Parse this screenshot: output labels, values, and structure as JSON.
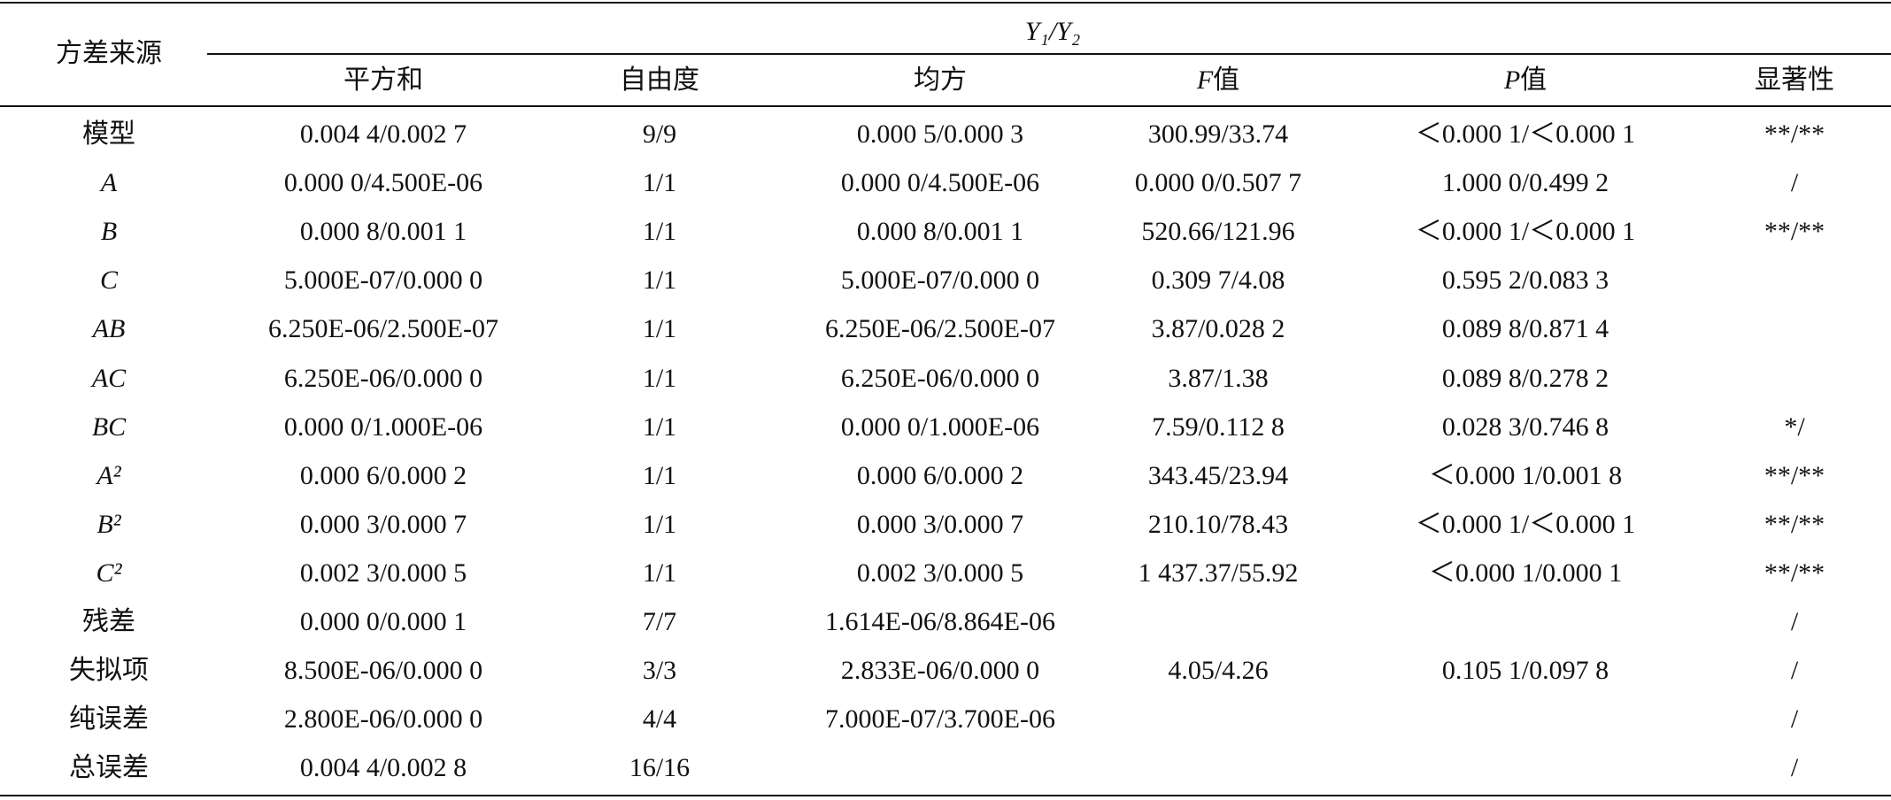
{
  "table": {
    "header": {
      "first": "方差来源",
      "group": "Y₁/Y₂",
      "columns": [
        "平方和",
        "自由度",
        "均方",
        "F值",
        "P值",
        "显著性"
      ]
    },
    "rows": [
      [
        "模型",
        "0.004 4/0.002 7",
        "9/9",
        "0.000 5/0.000 3",
        "300.99/33.74",
        "＜0.000 1/＜0.000 1",
        "**/**"
      ],
      [
        "A",
        "0.000 0/4.500E-06",
        "1/1",
        "0.000 0/4.500E-06",
        "0.000 0/0.507 7",
        "1.000 0/0.499 2",
        "/"
      ],
      [
        "B",
        "0.000 8/0.001 1",
        "1/1",
        "0.000 8/0.001 1",
        "520.66/121.96",
        "＜0.000 1/＜0.000 1",
        "**/**"
      ],
      [
        "C",
        "5.000E-07/0.000 0",
        "1/1",
        "5.000E-07/0.000 0",
        "0.309 7/4.08",
        "0.595 2/0.083 3",
        null
      ],
      [
        "AB",
        "6.250E-06/2.500E-07",
        "1/1",
        "6.250E-06/2.500E-07",
        "3.87/0.028 2",
        "0.089 8/0.871 4",
        null
      ],
      [
        "AC",
        "6.250E-06/0.000 0",
        "1/1",
        "6.250E-06/0.000 0",
        "3.87/1.38",
        "0.089 8/0.278 2",
        null
      ],
      [
        "BC",
        "0.000 0/1.000E-06",
        "1/1",
        "0.000 0/1.000E-06",
        "7.59/0.112 8",
        "0.028 3/0.746 8",
        "*/"
      ],
      [
        "A²",
        "0.000 6/0.000 2",
        "1/1",
        "0.000 6/0.000 2",
        "343.45/23.94",
        "＜0.000 1/0.001 8",
        "**/**"
      ],
      [
        "B²",
        "0.000 3/0.000 7",
        "1/1",
        "0.000 3/0.000 7",
        "210.10/78.43",
        "＜0.000 1/＜0.000 1",
        "**/**"
      ],
      [
        "C²",
        "0.002 3/0.000 5",
        "1/1",
        "0.002 3/0.000 5",
        "1 437.37/55.92",
        "＜0.000 1/0.000 1",
        "**/**"
      ],
      [
        "残差",
        "0.000 0/0.000 1",
        "7/7",
        "1.614E-06/8.864E-06",
        null,
        null,
        "/"
      ],
      [
        "失拟项",
        "8.500E-06/0.000 0",
        "3/3",
        "2.833E-06/0.000 0",
        "4.05/4.26",
        "0.105 1/0.097 8",
        "/"
      ],
      [
        "纯误差",
        "2.800E-06/0.000 0",
        "4/4",
        "7.000E-07/3.700E-06",
        null,
        null,
        "/"
      ],
      [
        "总误差",
        "0.004 4/0.002 8",
        "16/16",
        null,
        null,
        null,
        "/"
      ]
    ]
  }
}
